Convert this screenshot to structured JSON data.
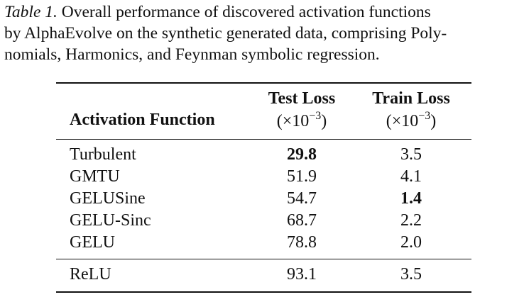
{
  "caption": {
    "label": "Table 1.",
    "line1_text": "Overall performance of discovered activation functions",
    "line2_text": "by AlphaEvolve on the synthetic generated data, comprising Poly-",
    "line3_text": "nomials, Harmonics, and Feynman symbolic regression."
  },
  "table": {
    "headers": {
      "col1": "Activation Function",
      "col2_title": "Test Loss",
      "col2_unit_prefix": "(×10",
      "col2_unit_exp": "−3",
      "col2_unit_suffix": ")",
      "col3_title": "Train Loss",
      "col3_unit_prefix": "(×10",
      "col3_unit_exp": "−3",
      "col3_unit_suffix": ")"
    },
    "rows": [
      {
        "name": "Turbulent",
        "test": "29.8",
        "train": "3.5",
        "bold_test": true,
        "bold_train": false
      },
      {
        "name": "GMTU",
        "test": "51.9",
        "train": "4.1",
        "bold_test": false,
        "bold_train": false
      },
      {
        "name": "GELUSine",
        "test": "54.7",
        "train": "1.4",
        "bold_test": false,
        "bold_train": true
      },
      {
        "name": "GELU-Sinc",
        "test": "68.7",
        "train": "2.2",
        "bold_test": false,
        "bold_train": false
      },
      {
        "name": "GELU",
        "test": "78.8",
        "train": "2.0",
        "bold_test": false,
        "bold_train": false
      }
    ],
    "baseline": {
      "name": "ReLU",
      "test": "93.1",
      "train": "3.5"
    }
  }
}
